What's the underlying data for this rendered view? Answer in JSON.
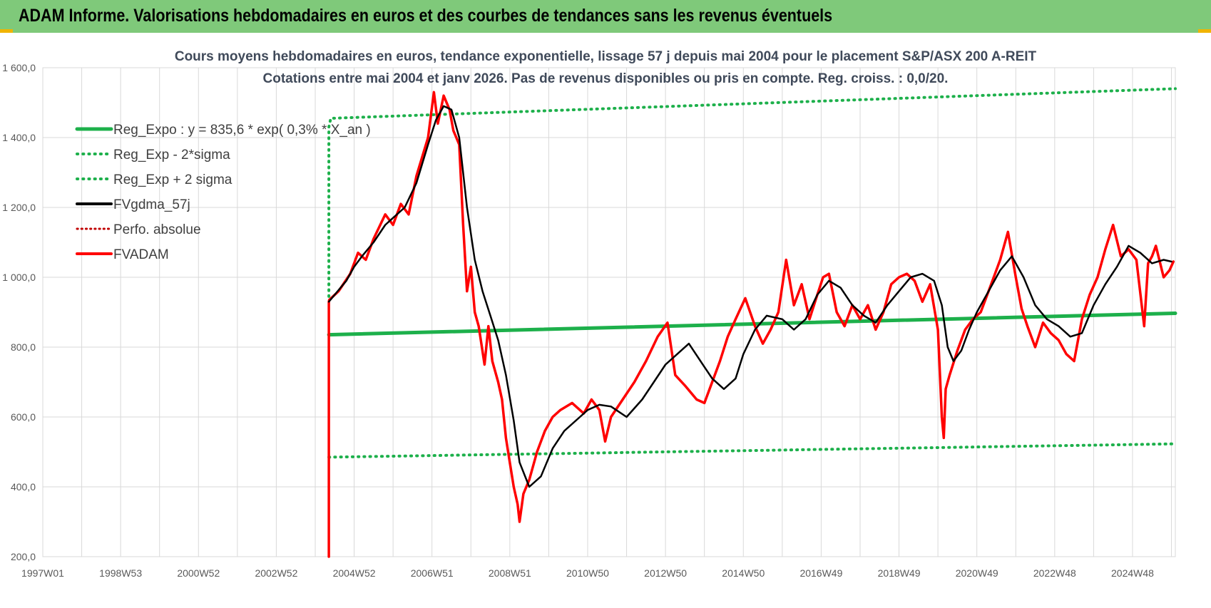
{
  "header": {
    "title": "ADAM Informe. Valorisations hebdomadaires en euros et des courbes de tendances sans les revenus éventuels"
  },
  "colors": {
    "banner": "#7fc97a",
    "regression": "#1db04b",
    "smoothed": "#000000",
    "price": "#ff0000",
    "perf": "#c00000",
    "grid": "#d9d9d9",
    "title_text": "#404a5a"
  },
  "chart_data": {
    "type": "line",
    "title": "Cours moyens hebdomadaires en euros, tendance exponentielle, lissage 57 j depuis mai 2004 pour le placement S&P/ASX 200 A-REIT",
    "subtitle": "Cotations entre mai 2004 et janv 2026. Pas de revenus disponibles ou pris en compte. Reg. croiss. : 0,0/20.",
    "xlabel": "",
    "ylabel": "",
    "x_range": [
      1997.0,
      2026.1
    ],
    "ylim": [
      200,
      1600
    ],
    "y_ticks": [
      "200,0",
      "400,0",
      "600,0",
      "800,0",
      "1 000,0",
      "1 200,0",
      "1 400,0",
      "1 600,0"
    ],
    "y_tick_values": [
      200,
      400,
      600,
      800,
      1000,
      1200,
      1400,
      1600
    ],
    "x_tick_labels": [
      "1997W01",
      "1998W53",
      "2000W52",
      "2002W52",
      "2004W52",
      "2006W51",
      "2008W51",
      "2010W50",
      "2012W50",
      "2014W50",
      "2016W49",
      "2018W49",
      "2020W49",
      "2022W48",
      "2024W48"
    ],
    "x_tick_values": [
      1997.0,
      1999.0,
      2001.0,
      2003.0,
      2005.0,
      2007.0,
      2009.0,
      2011.0,
      2013.0,
      2015.0,
      2017.0,
      2019.0,
      2021.0,
      2023.0,
      2025.0
    ],
    "grid": true,
    "legend_position": "top-left",
    "legend": [
      "Reg_Expo : y = 835,6 * exp( 0,3% * X_an )",
      "Reg_Exp - 2*sigma",
      "Reg_Exp + 2 sigma",
      "FVgdma_57j",
      "Perfo. absolue",
      "FVADAM"
    ],
    "series": [
      {
        "name": "Reg_Expo : y = 835,6 * exp( 0,3% * X_an )",
        "style": "solid-thick",
        "x": [
          2004.35,
          2026.1
        ],
        "y": [
          835.6,
          897
        ]
      },
      {
        "name": "Reg_Exp - 2*sigma",
        "style": "dotted",
        "x": [
          2004.35,
          2026.1
        ],
        "y": [
          485,
          523
        ]
      },
      {
        "name": "Reg_Exp + 2 sigma",
        "style": "dotted",
        "x": [
          2004.35,
          2004.35,
          2004.4,
          2026.1
        ],
        "y": [
          945,
          1430,
          1455,
          1540
        ]
      },
      {
        "name": "FVgdma_57j",
        "style": "solid",
        "x": [
          2004.35,
          2004.5,
          2004.8,
          2005.0,
          2005.2,
          2005.5,
          2005.8,
          2006.0,
          2006.3,
          2006.6,
          2006.9,
          2007.1,
          2007.3,
          2007.5,
          2007.7,
          2007.9,
          2008.1,
          2008.3,
          2008.5,
          2008.7,
          2008.9,
          2009.1,
          2009.25,
          2009.5,
          2009.8,
          2010.1,
          2010.4,
          2010.8,
          2011.0,
          2011.3,
          2011.6,
          2012.0,
          2012.4,
          2012.7,
          2013.0,
          2013.3,
          2013.6,
          2013.9,
          2014.2,
          2014.5,
          2014.8,
          2015.0,
          2015.3,
          2015.6,
          2016.0,
          2016.3,
          2016.6,
          2016.9,
          2017.2,
          2017.5,
          2017.8,
          2018.1,
          2018.4,
          2018.7,
          2019.0,
          2019.3,
          2019.6,
          2019.9,
          2020.1,
          2020.25,
          2020.4,
          2020.6,
          2020.8,
          2021.0,
          2021.3,
          2021.6,
          2021.9,
          2022.2,
          2022.5,
          2022.8,
          2023.1,
          2023.4,
          2023.7,
          2024.0,
          2024.3,
          2024.6,
          2024.9,
          2025.2,
          2025.5,
          2025.8,
          2026.0
        ],
        "y": [
          930,
          950,
          990,
          1030,
          1060,
          1100,
          1150,
          1170,
          1200,
          1270,
          1380,
          1450,
          1490,
          1480,
          1400,
          1200,
          1050,
          960,
          890,
          820,
          720,
          590,
          470,
          400,
          430,
          510,
          560,
          600,
          620,
          635,
          630,
          600,
          650,
          700,
          750,
          780,
          810,
          760,
          710,
          680,
          710,
          780,
          850,
          890,
          880,
          850,
          880,
          950,
          990,
          970,
          920,
          890,
          870,
          920,
          960,
          1000,
          1010,
          990,
          920,
          800,
          760,
          790,
          850,
          900,
          960,
          1020,
          1060,
          1000,
          920,
          880,
          860,
          830,
          840,
          920,
          980,
          1030,
          1090,
          1070,
          1040,
          1050,
          1045
        ]
      },
      {
        "name": "FVADAM",
        "style": "solid-thick",
        "x": [
          2004.35,
          2004.35,
          2004.36,
          2004.6,
          2004.9,
          2005.1,
          2005.3,
          2005.5,
          2005.8,
          2006.0,
          2006.2,
          2006.4,
          2006.6,
          2006.9,
          2007.05,
          2007.15,
          2007.3,
          2007.45,
          2007.55,
          2007.7,
          2007.8,
          2007.9,
          2008.0,
          2008.1,
          2008.2,
          2008.35,
          2008.45,
          2008.55,
          2008.7,
          2008.8,
          2008.9,
          2009.0,
          2009.1,
          2009.2,
          2009.25,
          2009.35,
          2009.5,
          2009.7,
          2009.9,
          2010.1,
          2010.3,
          2010.6,
          2010.9,
          2011.1,
          2011.3,
          2011.45,
          2011.6,
          2011.9,
          2012.2,
          2012.5,
          2012.8,
          2013.05,
          2013.25,
          2013.5,
          2013.8,
          2014.0,
          2014.2,
          2014.4,
          2014.6,
          2014.8,
          2015.05,
          2015.3,
          2015.5,
          2015.7,
          2015.9,
          2016.1,
          2016.3,
          2016.5,
          2016.7,
          2016.9,
          2017.05,
          2017.2,
          2017.4,
          2017.6,
          2017.8,
          2018.0,
          2018.2,
          2018.4,
          2018.6,
          2018.8,
          2019.0,
          2019.2,
          2019.4,
          2019.6,
          2019.8,
          2020.0,
          2020.1,
          2020.15,
          2020.2,
          2020.3,
          2020.5,
          2020.7,
          2020.9,
          2021.1,
          2021.3,
          2021.6,
          2021.8,
          2022.0,
          2022.15,
          2022.3,
          2022.5,
          2022.7,
          2022.9,
          2023.1,
          2023.3,
          2023.5,
          2023.7,
          2023.9,
          2024.1,
          2024.3,
          2024.5,
          2024.7,
          2024.9,
          2025.1,
          2025.3,
          2025.4,
          2025.5,
          2025.6,
          2025.8,
          2025.95,
          2026.05
        ],
        "y": [
          200,
          930,
          935,
          960,
          1010,
          1070,
          1050,
          1110,
          1180,
          1150,
          1210,
          1180,
          1290,
          1400,
          1530,
          1440,
          1520,
          1480,
          1420,
          1380,
          1150,
          960,
          1030,
          900,
          860,
          750,
          860,
          760,
          700,
          650,
          540,
          470,
          400,
          350,
          300,
          380,
          420,
          500,
          560,
          600,
          620,
          640,
          610,
          650,
          620,
          530,
          600,
          650,
          700,
          760,
          830,
          870,
          720,
          690,
          650,
          640,
          700,
          760,
          830,
          880,
          940,
          860,
          810,
          850,
          900,
          1050,
          920,
          980,
          880,
          950,
          1000,
          1010,
          900,
          860,
          920,
          880,
          920,
          850,
          900,
          980,
          1000,
          1010,
          990,
          930,
          980,
          850,
          600,
          540,
          680,
          720,
          790,
          850,
          880,
          900,
          960,
          1050,
          1130,
          1000,
          910,
          860,
          800,
          870,
          840,
          820,
          780,
          760,
          880,
          950,
          1000,
          1080,
          1150,
          1060,
          1080,
          1050,
          860,
          1040,
          1060,
          1090,
          1000,
          1020,
          1045
        ]
      }
    ]
  }
}
